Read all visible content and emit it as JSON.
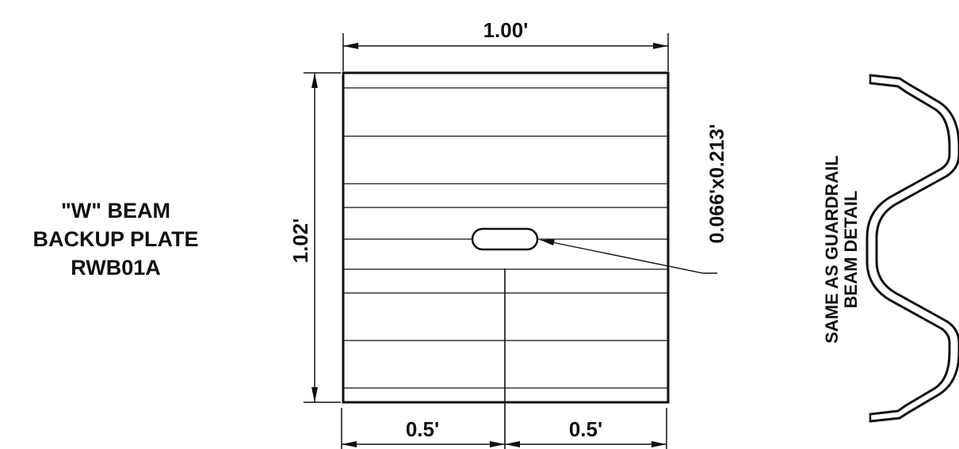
{
  "title": {
    "line1": "\"W\" BEAM",
    "line2": "BACKUP PLATE",
    "line3": "RWB01A"
  },
  "dimensions": {
    "width": "1.00'",
    "height": "1.02'",
    "half_left": "0.5'",
    "half_right": "0.5'",
    "slot": "0.066'x0.213'"
  },
  "note": {
    "line1": "SAME AS GUARDRAIL",
    "line2": "BEAM DETAIL"
  },
  "colors": {
    "ink": "#111111",
    "paper": "#ffffff"
  }
}
